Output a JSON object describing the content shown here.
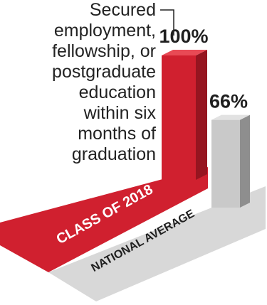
{
  "chart_data": {
    "type": "bar",
    "categories": [
      "CLASS OF 2018",
      "NATIONAL AVERAGE"
    ],
    "values": [
      100,
      66
    ],
    "value_labels": [
      "100%",
      "66%"
    ],
    "unit": "%",
    "ylim": [
      0,
      100
    ],
    "title": "",
    "xlabel": "",
    "ylabel": "",
    "grid": false,
    "annotation_lines": [
      "Secured",
      "employment,",
      "fellowship, or",
      "postgraduate",
      "education",
      "within six",
      "months of",
      "graduation"
    ],
    "colors": {
      "class_front": "#d0202f",
      "class_side": "#961520",
      "class_top": "#e84a55",
      "class_band": "#d0202f",
      "national_front": "#c9c9c9",
      "national_side": "#8e8e8e",
      "national_top": "#e2e2e2",
      "national_band": "#d8d8d8",
      "band_text_class": "#ffffff",
      "band_text_national": "#1f1f1f",
      "value_text": "#1f1f1f",
      "leader_line": "#222222"
    }
  }
}
